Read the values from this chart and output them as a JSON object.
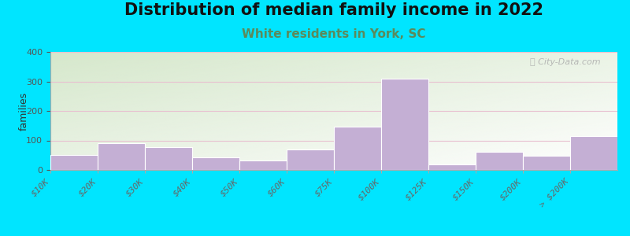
{
  "title": "Distribution of median family income in 2022",
  "subtitle": "White residents in York, SC",
  "ylabel": "families",
  "categories": [
    "$10K",
    "$20K",
    "$30K",
    "$40K",
    "$50K",
    "$60K",
    "$75K",
    "$100K",
    "$125K",
    "$150K",
    "$200K",
    "> $200K"
  ],
  "values": [
    50,
    90,
    78,
    42,
    33,
    70,
    147,
    310,
    18,
    62,
    47,
    115
  ],
  "bar_color": "#c4afd4",
  "bar_edge_color": "#c4afd4",
  "background_fig": "#00e5ff",
  "grad_top_left": "#d6e8cc",
  "grad_bottom_right": "#ffffff",
  "grid_color": "#e8c0d0",
  "title_fontsize": 15,
  "subtitle_fontsize": 11,
  "subtitle_color": "#5b8a5b",
  "ylabel_fontsize": 9,
  "tick_label_fontsize": 8,
  "ytick_label_fontsize": 8,
  "ylim": [
    0,
    400
  ],
  "yticks": [
    0,
    100,
    200,
    300,
    400
  ],
  "watermark": "ⓘ City-Data.com"
}
